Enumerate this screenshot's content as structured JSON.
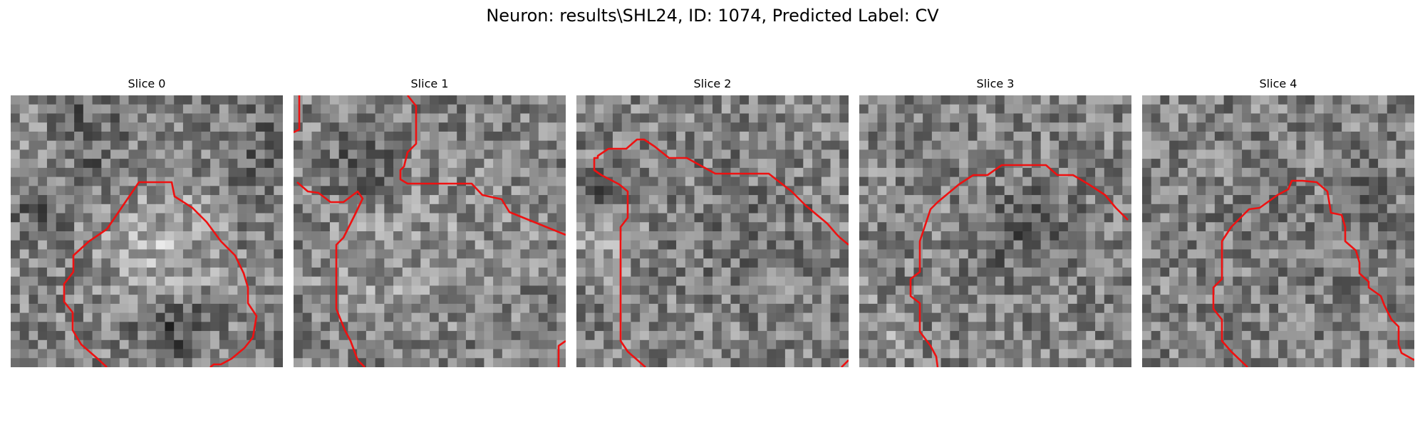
{
  "figure": {
    "title": "Neuron: results\\SHL24, ID: 1074, Predicted Label: CV"
  },
  "panels": [
    {
      "title": "Slice 0"
    },
    {
      "title": "Slice 1"
    },
    {
      "title": "Slice 2"
    },
    {
      "title": "Slice 3"
    },
    {
      "title": "Slice 4"
    }
  ],
  "colors": {
    "contour": "#ee1111",
    "background": "#ffffff"
  }
}
